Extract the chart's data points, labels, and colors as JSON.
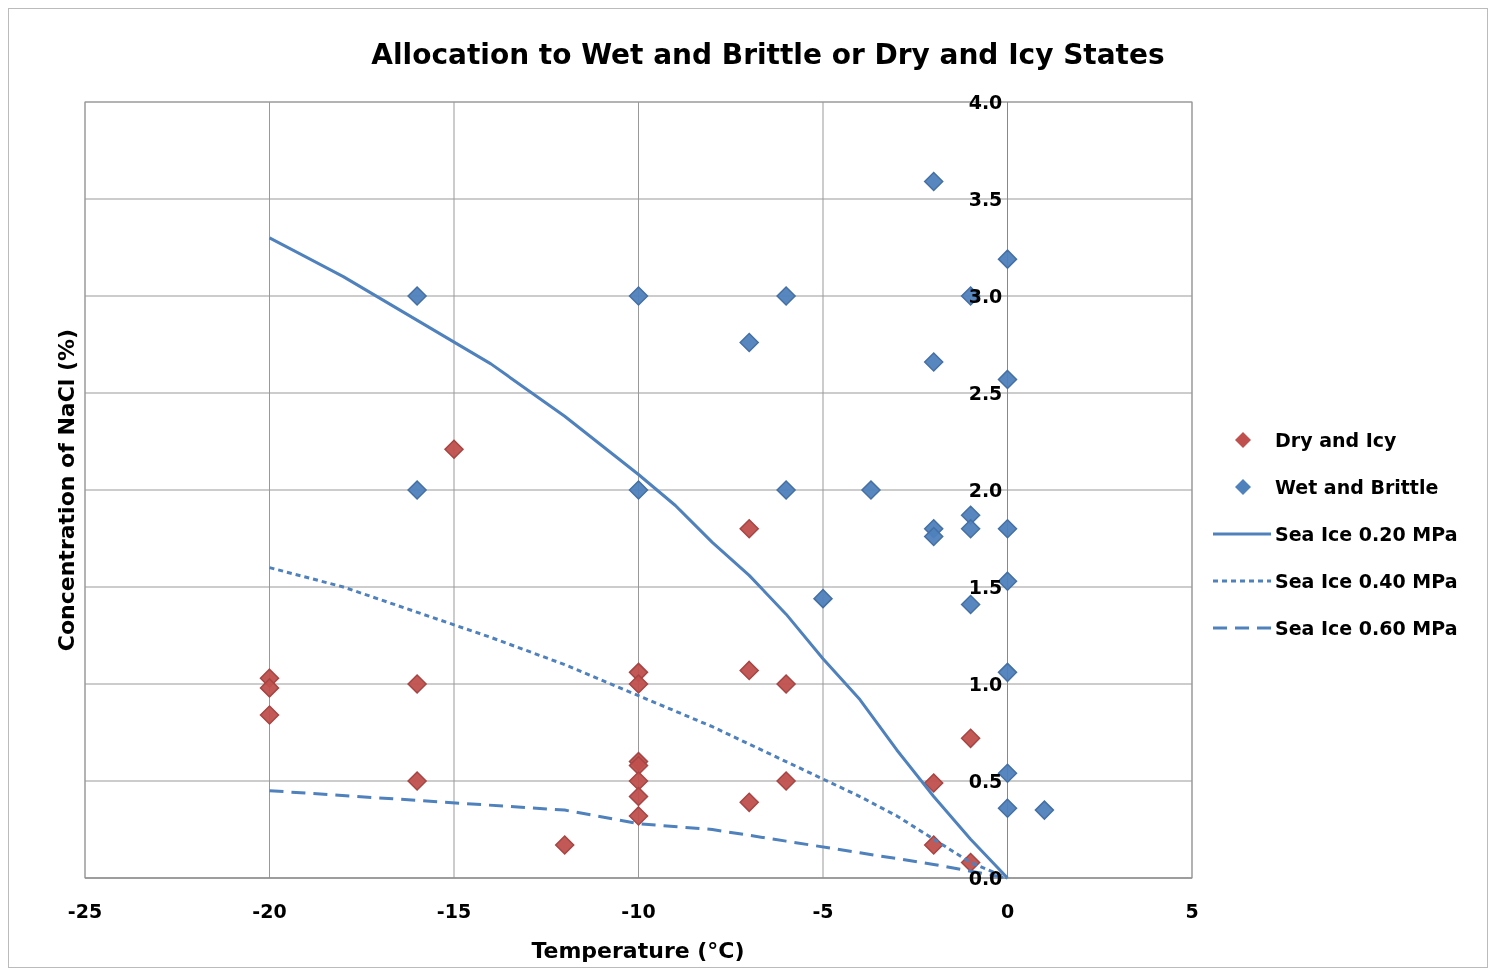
{
  "chart_data": {
    "type": "scatter",
    "title": "Allocation to Wet and Brittle or Dry and Icy States",
    "xlabel": "Temperature (°C)",
    "ylabel": "Concentration of NaCl (%)",
    "xlim": [
      -25,
      5
    ],
    "xticks": [
      -25,
      -20,
      -15,
      -10,
      -5,
      0,
      5
    ],
    "ylim": [
      0,
      4
    ],
    "yticks": [
      {
        "value": 0,
        "label": "0.0"
      },
      {
        "value": 0.5,
        "label": "0.5"
      },
      {
        "value": 1,
        "label": "1.0"
      },
      {
        "value": 1.5,
        "label": "1.5"
      },
      {
        "value": 2,
        "label": "2.0"
      },
      {
        "value": 2.5,
        "label": "2.5"
      },
      {
        "value": 3,
        "label": "3.0"
      },
      {
        "value": 3.5,
        "label": "3.5"
      },
      {
        "value": 4,
        "label": "4.0"
      }
    ],
    "grid": true,
    "legend": "right",
    "series": [
      {
        "name": "Dry and Icy",
        "marker": "diamond",
        "color": "#c0504d",
        "x": [
          -20,
          -20,
          -20,
          -16,
          -16,
          -15,
          -12,
          -10,
          -10,
          -10,
          -10,
          -10,
          -10,
          -10,
          -7,
          -7,
          -7,
          -6,
          -6,
          -2,
          -2,
          -1,
          -1
        ],
        "values": [
          1.03,
          0.98,
          0.84,
          1.0,
          0.5,
          2.21,
          0.17,
          1.06,
          1.0,
          0.6,
          0.58,
          0.5,
          0.42,
          0.32,
          1.8,
          1.07,
          0.39,
          1.0,
          0.5,
          0.49,
          0.17,
          0.72,
          0.08
        ]
      },
      {
        "name": "Wet and Brittle",
        "marker": "diamond",
        "color": "#4f81bd",
        "x": [
          -16,
          -16,
          -10,
          -10,
          -7,
          -6,
          -6,
          -3.7,
          -5,
          -2,
          -2,
          -2,
          -2,
          -1,
          -1,
          -1,
          -1,
          0,
          0,
          0,
          0,
          0,
          0,
          0,
          1
        ],
        "values": [
          3.0,
          2.0,
          3.0,
          2.0,
          2.76,
          3.0,
          2.0,
          2.0,
          1.44,
          3.59,
          2.66,
          1.8,
          1.76,
          3.0,
          1.87,
          1.8,
          1.41,
          3.19,
          2.57,
          1.8,
          1.53,
          1.06,
          0.54,
          0.36,
          0.35
        ]
      },
      {
        "name": "Sea Ice 0.20 MPa",
        "type": "line",
        "marker": "none",
        "line_style": "solid",
        "color": "#4f81bd",
        "x": [
          -20,
          -18,
          -14,
          -12,
          -10,
          -9,
          -8,
          -7,
          -6,
          -5,
          -4,
          -3,
          -2,
          -1,
          0
        ],
        "values": [
          3.3,
          3.1,
          2.65,
          2.38,
          2.08,
          1.92,
          1.73,
          1.56,
          1.36,
          1.13,
          0.92,
          0.66,
          0.42,
          0.2,
          0
        ]
      },
      {
        "name": "Sea Ice 0.40 MPa",
        "type": "line",
        "marker": "none",
        "line_style": "dotted",
        "color": "#4f81bd",
        "x": [
          -20,
          -18,
          -14,
          -12,
          -10,
          -8,
          -6,
          -5,
          -4,
          -3,
          -2,
          -1,
          0
        ],
        "values": [
          1.6,
          1.5,
          1.24,
          1.1,
          0.94,
          0.78,
          0.6,
          0.51,
          0.42,
          0.32,
          0.2,
          0.08,
          0
        ]
      },
      {
        "name": "Sea Ice 0.60 MPa",
        "type": "line",
        "marker": "none",
        "line_style": "dashed",
        "color": "#4f81bd",
        "x": [
          -20,
          -16,
          -12,
          -10,
          -8,
          -6,
          -4,
          -2,
          0
        ],
        "values": [
          0.45,
          0.4,
          0.35,
          0.28,
          0.25,
          0.19,
          0.13,
          0.07,
          0
        ]
      }
    ]
  }
}
